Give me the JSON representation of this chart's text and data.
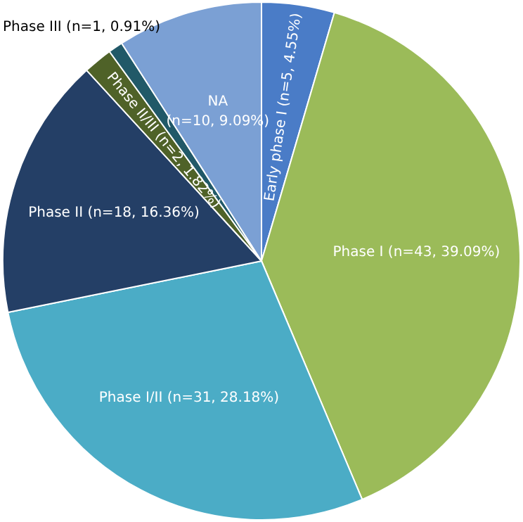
{
  "chart_data": {
    "type": "pie",
    "categories": [
      "Early phase I",
      "Phase I",
      "Phase I/II",
      "Phase II",
      "Phase II/III",
      "Phase III",
      "NA"
    ],
    "values": [
      5,
      43,
      31,
      18,
      2,
      1,
      10
    ],
    "value_labels": [
      "(n=5, 4.55%)",
      "(n=43, 39.09%)",
      "(n=31, 28.18%)",
      "(n=18, 16.36%)",
      "(n=2, 1.82%)",
      "(n=1, 0.91%)",
      "(n=10, 9.09%)"
    ],
    "colors": [
      "#4a7cc7",
      "#9bbb59",
      "#4bacc6",
      "#243f66",
      "#4f6228",
      "#215968",
      "#7ba0d4"
    ],
    "legend": false
  }
}
